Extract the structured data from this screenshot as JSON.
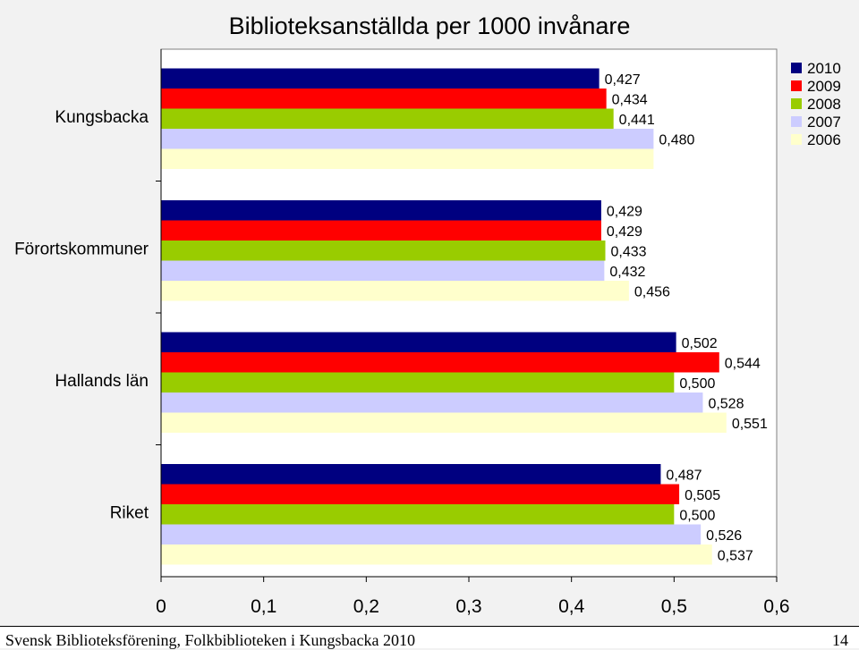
{
  "chart_data": {
    "type": "bar",
    "orientation": "horizontal",
    "title": "Biblioteksanställda per 1000 invånare",
    "categories": [
      "Kungsbacka",
      "Förortskommuner",
      "Hallands län",
      "Riket"
    ],
    "series": [
      {
        "name": "2010",
        "color": "#000080",
        "values": [
          0.427,
          0.429,
          0.502,
          0.487
        ],
        "labels": [
          "0,427",
          "0,429",
          "0,502",
          "0,487"
        ]
      },
      {
        "name": "2009",
        "color": "#ff0000",
        "values": [
          0.434,
          0.429,
          0.544,
          0.505
        ],
        "labels": [
          "0,434",
          "0,429",
          "0,544",
          "0,505"
        ]
      },
      {
        "name": "2008",
        "color": "#99cc00",
        "values": [
          0.441,
          0.433,
          0.5,
          0.5
        ],
        "labels": [
          "0,441",
          "0,433",
          "0,500",
          "0,500"
        ]
      },
      {
        "name": "2007",
        "color": "#ccccff",
        "values": [
          0.48,
          0.432,
          0.528,
          0.526
        ],
        "labels": [
          "0,480",
          "0,432",
          "0,528",
          "0,526"
        ]
      },
      {
        "name": "2006",
        "color": "#ffffcc",
        "values": [
          0.48,
          0.456,
          0.551,
          0.537
        ],
        "labels": [
          "",
          "0,456",
          "0,551",
          "0,537"
        ]
      }
    ],
    "xlim": [
      0,
      0.6
    ],
    "xticks": [
      0,
      0.1,
      0.2,
      0.3,
      0.4,
      0.5,
      0.6
    ],
    "xtick_labels": [
      "0",
      "0,1",
      "0,2",
      "0,3",
      "0,4",
      "0,5",
      "0,6"
    ],
    "legend_position": "top-right",
    "grid": false
  },
  "footer": {
    "left": "Svensk Biblioteksförening, Folkbiblioteken i Kungsbacka 2010",
    "right": "14"
  }
}
